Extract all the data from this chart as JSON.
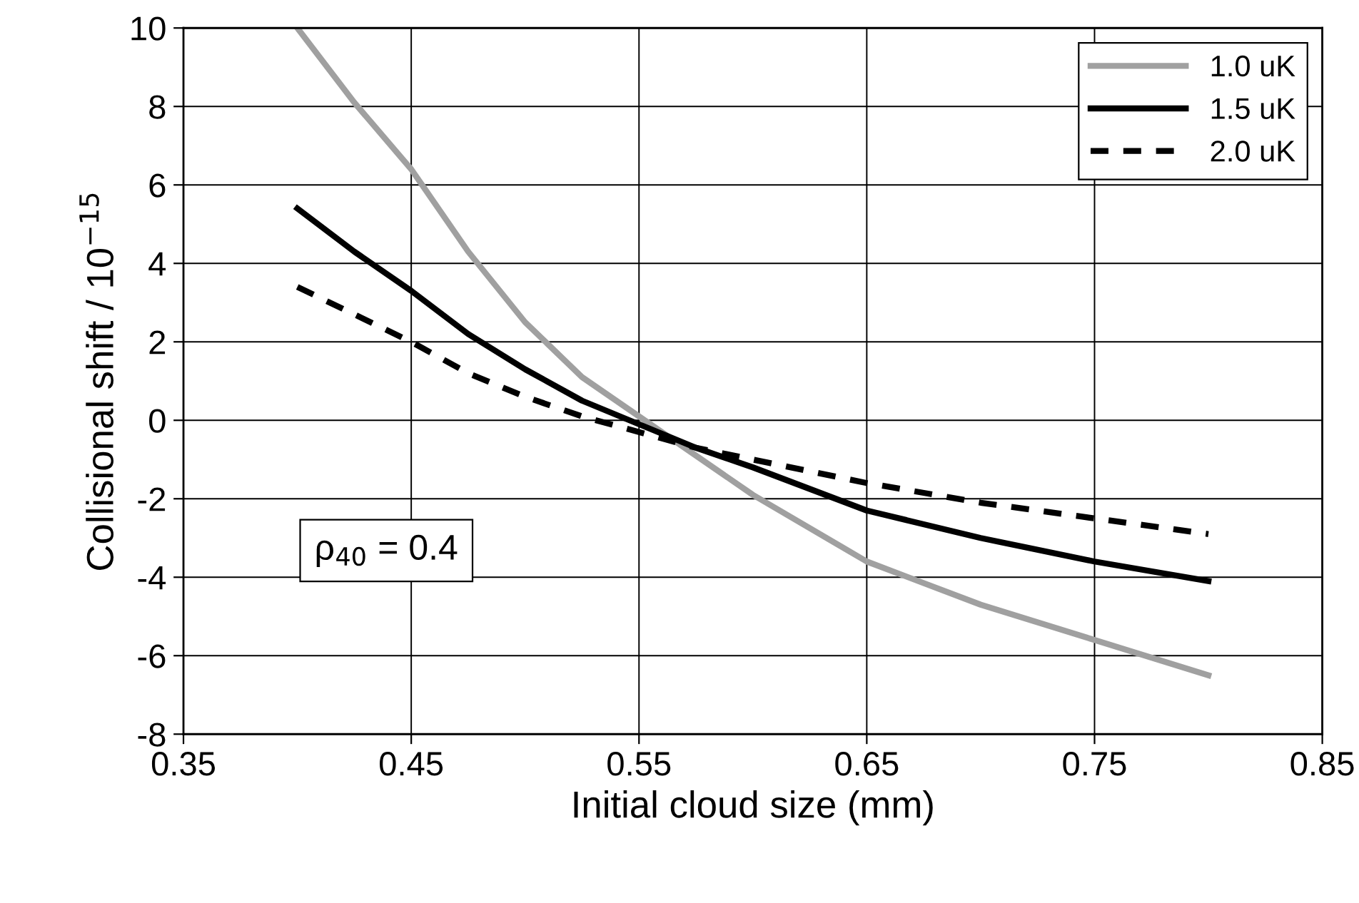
{
  "chart_data": {
    "type": "line",
    "xlabel": "Initial cloud size (mm)",
    "ylabel": "Collisional shift / 10$^{−15}$",
    "x": [
      0.4,
      0.425,
      0.45,
      0.475,
      0.5,
      0.525,
      0.55,
      0.575,
      0.6,
      0.65,
      0.7,
      0.75,
      0.8
    ],
    "series": [
      {
        "name": "1.0 uK",
        "color": "#a0a0a0",
        "line_style": "solid",
        "values": [
          10,
          8.1,
          6.4,
          4.3,
          2.5,
          1.1,
          0.1,
          -0.9,
          -1.9,
          -3.6,
          -4.7,
          -5.6,
          -6.5
        ]
      },
      {
        "name": "1.5 uK",
        "color": "#000000",
        "line_style": "solid",
        "values": [
          5.4,
          4.3,
          3.3,
          2.2,
          1.3,
          0.5,
          -0.1,
          -0.7,
          -1.2,
          -2.3,
          -3.0,
          -3.6,
          -4.1
        ]
      },
      {
        "name": "2.0 uK",
        "color": "#000000",
        "line_style": "dashed",
        "values": [
          3.4,
          2.7,
          2.0,
          1.2,
          0.6,
          0.1,
          -0.3,
          -0.7,
          -1.0,
          -1.6,
          -2.1,
          -2.5,
          -2.9
        ]
      }
    ],
    "xlim": [
      0.35,
      0.85
    ],
    "xticks": [
      0.35,
      0.45,
      0.55,
      0.65,
      0.75,
      0.85
    ],
    "ylim": [
      -8,
      10
    ],
    "yticks": [
      -8,
      -6,
      -4,
      -2,
      0,
      2,
      4,
      6,
      8,
      10
    ],
    "grid": true,
    "legend": "top right",
    "marker": "none",
    "annotations": [
      "ρ$_{40}$ = 0.4"
    ]
  }
}
